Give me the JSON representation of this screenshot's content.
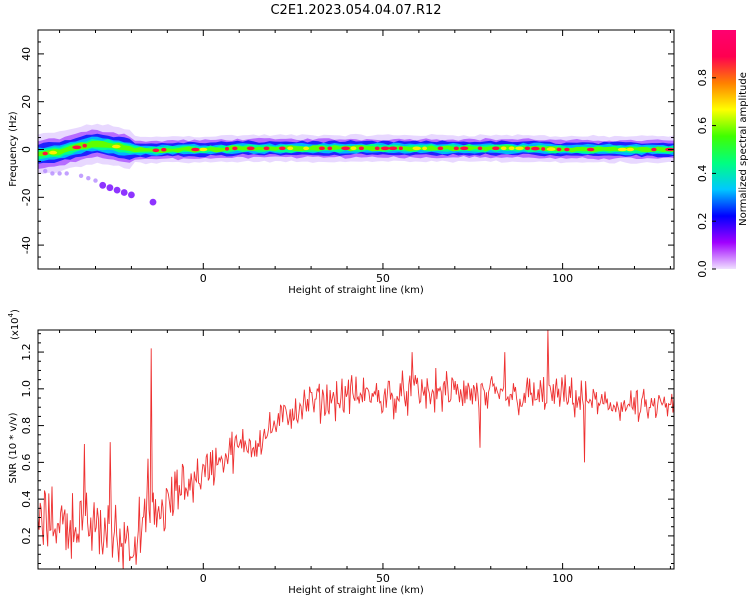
{
  "title": "C2E1.2023.054.04.07.R12",
  "chart_data": [
    {
      "type": "heatmap",
      "xlabel": "Height of straight line (km)",
      "ylabel": "Frequency (Hz)",
      "xlim": [
        -46,
        131
      ],
      "ylim": [
        -50,
        50
      ],
      "x_ticks": [
        0,
        50,
        100
      ],
      "y_ticks": [
        -40,
        -20,
        0,
        20,
        40
      ],
      "colorbar": {
        "label": "Normalized spectral amplitude",
        "range": [
          0,
          1
        ],
        "ticks": [
          "0.0",
          "0.2",
          "0.4",
          "0.6",
          "0.8"
        ],
        "colors": [
          "#f0e0ff",
          "#a000ff",
          "#0000ff",
          "#00c8ff",
          "#00ff80",
          "#40ff00",
          "#ffff00",
          "#ff8000",
          "#ff0050",
          "#ff0070"
        ]
      },
      "ridge": {
        "x": [
          -46,
          -40,
          -35,
          -30,
          -25,
          -20,
          -15,
          -10,
          -5,
          0,
          10,
          20,
          30,
          40,
          50,
          60,
          70,
          80,
          90,
          100,
          110,
          120,
          131
        ],
        "freq": [
          -2,
          -1,
          1,
          2.5,
          1.5,
          0,
          -0.5,
          0,
          0,
          0,
          0.5,
          0.5,
          0.5,
          0.5,
          0.5,
          0.5,
          0.5,
          0.5,
          0.5,
          0,
          0,
          0,
          0
        ]
      },
      "weak_track": {
        "x": [
          -44,
          -42,
          -40,
          -38,
          -34,
          -32,
          -30,
          -28,
          -26,
          -24,
          -22,
          -20,
          -14
        ],
        "freq": [
          -9,
          -10,
          -10,
          -10,
          -11,
          -12,
          -13,
          -15,
          -16,
          -17,
          -18,
          -19,
          -22
        ]
      }
    },
    {
      "type": "line",
      "xlabel": "Height of straight line (km)",
      "ylabel": "SNR (10 * v/v)",
      "y_multiplier": "(x10",
      "y_multiplier_exp": "4",
      "y_multiplier_close": ")",
      "xlim": [
        -46,
        131
      ],
      "ylim": [
        0.02,
        1.32
      ],
      "x_ticks": [
        0,
        50,
        100
      ],
      "y_ticks": [
        0.2,
        0.4,
        0.6,
        0.8,
        1.0,
        1.2
      ],
      "series": [
        {
          "color": "#ee3030",
          "trend": {
            "x": [
              -46,
              -40,
              -30,
              -25,
              -20,
              -15,
              -10,
              -5,
              0,
              5,
              10,
              15,
              20,
              25,
              30,
              40,
              50,
              60,
              70,
              80,
              90,
              100,
              110,
              120,
              131
            ],
            "y": [
              0.28,
              0.28,
              0.25,
              0.2,
              0.18,
              0.26,
              0.36,
              0.48,
              0.55,
              0.62,
              0.68,
              0.72,
              0.8,
              0.88,
              0.92,
              0.96,
              0.96,
              0.98,
              0.98,
              0.96,
              0.96,
              0.96,
              0.92,
              0.9,
              0.9
            ]
          },
          "noise_amplitude": [
            [
              -46,
              0.16
            ],
            [
              -20,
              0.18
            ],
            [
              0,
              0.12
            ],
            [
              20,
              0.09
            ],
            [
              50,
              0.11
            ],
            [
              100,
              0.1
            ],
            [
              131,
              0.08
            ]
          ],
          "spikes": [
            {
              "x": -14.5,
              "y": 1.22
            },
            {
              "x": -15.5,
              "y": 0.62
            },
            {
              "x": 96,
              "y": 1.32
            },
            {
              "x": 84,
              "y": 1.2
            },
            {
              "x": 58,
              "y": 1.2
            },
            {
              "x": 106,
              "y": 0.6
            },
            {
              "x": 77,
              "y": 0.68
            },
            {
              "x": -26,
              "y": 0.71
            },
            {
              "x": -33,
              "y": 0.7
            }
          ]
        }
      ]
    }
  ]
}
